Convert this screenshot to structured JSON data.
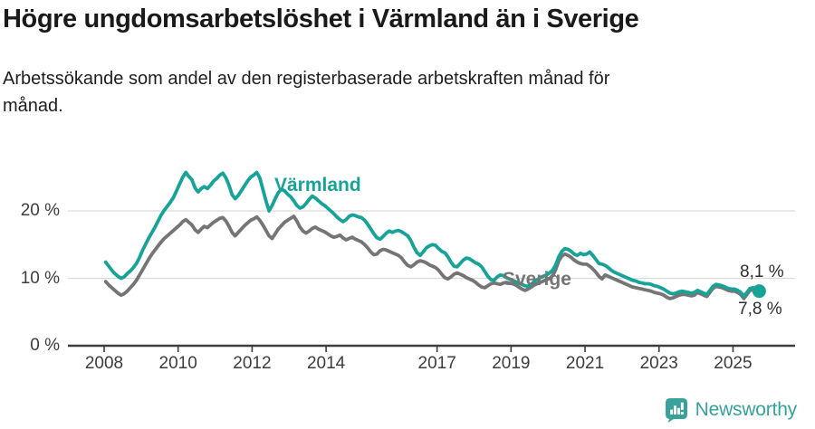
{
  "header": {
    "title": "Högre ungdomsarbetslöshet i Värmland än i Sverige",
    "subtitle_line1": "Arbetssökande som andel av den registerbaserade arbetskraften månad för",
    "subtitle_line2": "månad."
  },
  "chart_data": {
    "type": "line",
    "title": "Högre ungdomsarbetslöshet i Värmland än i Sverige",
    "subtitle": "Arbetssökande som andel av den registerbaserade arbetskraften månad för månad.",
    "unit": "percent",
    "frequency": "monthly",
    "start_year": 2008,
    "end_month": "2025-09",
    "ylim": [
      0,
      27
    ],
    "grid": "horizontal",
    "legend_position": "inline-annotations",
    "y_ticks": [
      {
        "value": 0,
        "label": "0 %"
      },
      {
        "value": 10,
        "label": "10 %"
      },
      {
        "value": 20,
        "label": "20 %"
      }
    ],
    "x_ticks": [
      {
        "year": 2008,
        "label": "2008"
      },
      {
        "year": 2010,
        "label": "2010"
      },
      {
        "year": 2012,
        "label": "2012"
      },
      {
        "year": 2014,
        "label": "2014"
      },
      {
        "year": 2017,
        "label": "2017"
      },
      {
        "year": 2019,
        "label": "2019"
      },
      {
        "year": 2021,
        "label": "2021"
      },
      {
        "year": 2023,
        "label": "2023"
      },
      {
        "year": 2025,
        "label": "2025"
      }
    ],
    "series": [
      {
        "name": "Värmland",
        "color": "#17a398",
        "end_value": 8.1,
        "end_label": "8,1 %",
        "values": [
          12.4,
          11.8,
          11.2,
          10.7,
          10.3,
          10.0,
          10.2,
          10.7,
          11.1,
          11.6,
          12.2,
          13.1,
          14.2,
          15.1,
          16.0,
          16.8,
          17.6,
          18.5,
          19.4,
          20.1,
          20.7,
          21.3,
          22.0,
          23.0,
          24.0,
          25.0,
          25.7,
          25.1,
          24.6,
          23.4,
          22.8,
          23.3,
          23.6,
          23.3,
          23.8,
          24.4,
          24.8,
          25.3,
          25.6,
          24.9,
          23.8,
          22.4,
          21.8,
          22.3,
          23.0,
          23.7,
          24.4,
          25.0,
          25.3,
          25.7,
          24.9,
          23.2,
          21.5,
          20.0,
          20.8,
          21.8,
          22.7,
          23.2,
          23.0,
          22.5,
          22.1,
          21.5,
          20.8,
          20.4,
          20.6,
          21.1,
          21.7,
          22.2,
          21.9,
          21.5,
          21.1,
          20.8,
          20.4,
          20.0,
          19.6,
          19.1,
          18.7,
          18.4,
          18.7,
          19.2,
          19.4,
          19.3,
          19.1,
          19.0,
          18.6,
          18.0,
          17.3,
          16.6,
          16.0,
          15.8,
          16.2,
          16.7,
          17.0,
          16.8,
          17.0,
          17.1,
          16.9,
          16.6,
          16.3,
          15.6,
          14.6,
          13.8,
          13.4,
          13.9,
          14.5,
          14.8,
          15.0,
          14.9,
          14.4,
          14.0,
          13.8,
          13.2,
          12.4,
          11.8,
          11.7,
          12.2,
          12.7,
          13.0,
          12.9,
          12.6,
          12.3,
          12.1,
          11.7,
          11.0,
          10.3,
          9.8,
          9.7,
          10.2,
          10.5,
          10.4,
          10.1,
          9.9,
          9.7,
          9.5,
          9.3,
          9.1,
          8.9,
          8.8,
          9.1,
          9.5,
          9.8,
          10.1,
          10.3,
          10.5,
          10.8,
          11.2,
          12.0,
          13.2,
          14.0,
          14.4,
          14.3,
          14.0,
          13.6,
          13.4,
          13.7,
          13.5,
          13.6,
          13.9,
          13.4,
          12.8,
          12.2,
          12.1,
          11.9,
          11.6,
          11.2,
          10.9,
          10.7,
          10.5,
          10.3,
          10.1,
          9.9,
          9.7,
          9.6,
          9.4,
          9.3,
          9.2,
          9.2,
          9.1,
          8.9,
          8.8,
          8.6,
          8.4,
          8.1,
          7.8,
          7.7,
          7.8,
          8.0,
          8.1,
          8.0,
          7.9,
          7.8,
          7.9,
          8.2,
          8.0,
          7.8,
          7.6,
          8.2,
          8.8,
          9.1,
          9.0,
          8.9,
          8.7,
          8.5,
          8.4,
          8.4,
          8.2,
          7.9,
          7.3,
          7.9,
          8.5,
          8.6,
          8.3,
          8.1
        ]
      },
      {
        "name": "Sverige",
        "color": "#757575",
        "end_value": 7.8,
        "end_label": "7,8 %",
        "values": [
          9.5,
          9.0,
          8.6,
          8.2,
          7.8,
          7.5,
          7.7,
          8.1,
          8.6,
          9.1,
          9.7,
          10.5,
          11.3,
          12.1,
          12.9,
          13.6,
          14.2,
          14.8,
          15.4,
          15.9,
          16.3,
          16.7,
          17.1,
          17.5,
          17.9,
          18.4,
          18.7,
          18.3,
          17.9,
          17.2,
          16.8,
          17.3,
          17.7,
          17.5,
          17.9,
          18.3,
          18.6,
          18.9,
          19.0,
          18.5,
          17.7,
          16.8,
          16.3,
          16.8,
          17.3,
          17.8,
          18.2,
          18.6,
          18.8,
          19.1,
          18.6,
          17.9,
          17.1,
          16.3,
          15.9,
          16.6,
          17.3,
          17.8,
          18.3,
          18.6,
          18.9,
          19.2,
          18.5,
          17.6,
          17.0,
          16.7,
          17.0,
          17.4,
          17.6,
          17.3,
          17.1,
          16.9,
          16.6,
          16.3,
          16.1,
          16.2,
          16.4,
          16.0,
          15.7,
          15.9,
          16.1,
          15.8,
          15.6,
          15.4,
          15.0,
          14.5,
          13.9,
          13.5,
          13.6,
          14.1,
          14.3,
          14.2,
          14.0,
          13.8,
          13.6,
          13.4,
          13.0,
          12.4,
          11.9,
          11.7,
          12.0,
          12.4,
          12.6,
          12.5,
          12.3,
          12.0,
          11.8,
          11.6,
          11.2,
          10.6,
          10.1,
          9.9,
          10.2,
          10.6,
          10.8,
          10.6,
          10.4,
          10.1,
          9.9,
          9.7,
          9.4,
          9.0,
          8.7,
          8.6,
          8.9,
          9.2,
          9.3,
          9.2,
          9.1,
          9.3,
          9.4,
          9.3,
          9.2,
          9.0,
          8.7,
          8.4,
          8.2,
          8.4,
          8.7,
          9.0,
          9.2,
          9.4,
          9.6,
          9.8,
          10.0,
          10.4,
          11.3,
          12.6,
          13.3,
          13.6,
          13.4,
          13.1,
          12.7,
          12.4,
          12.2,
          12.1,
          12.1,
          11.8,
          11.4,
          10.9,
          10.3,
          9.9,
          10.5,
          10.3,
          10.1,
          9.9,
          9.7,
          9.5,
          9.3,
          9.1,
          8.9,
          8.7,
          8.6,
          8.5,
          8.4,
          8.3,
          8.2,
          8.1,
          7.9,
          7.8,
          7.7,
          7.5,
          7.2,
          7.0,
          7.1,
          7.3,
          7.5,
          7.6,
          7.6,
          7.5,
          7.4,
          7.5,
          7.9,
          7.7,
          7.5,
          7.3,
          7.9,
          8.5,
          8.8,
          8.7,
          8.6,
          8.4,
          8.2,
          8.1,
          8.1,
          7.9,
          7.6,
          7.0,
          7.6,
          8.2,
          8.3,
          8.0,
          7.8
        ]
      }
    ],
    "style": {
      "grid_color": "#dadada",
      "axis_color": "#3d3d3d",
      "accent_teal": "#17a398",
      "line_gray": "#757575"
    }
  },
  "footer": {
    "brand": "Newsworthy",
    "brand_color": "#36a29c",
    "logo_icon": "bar-chart-speech-bubble"
  }
}
